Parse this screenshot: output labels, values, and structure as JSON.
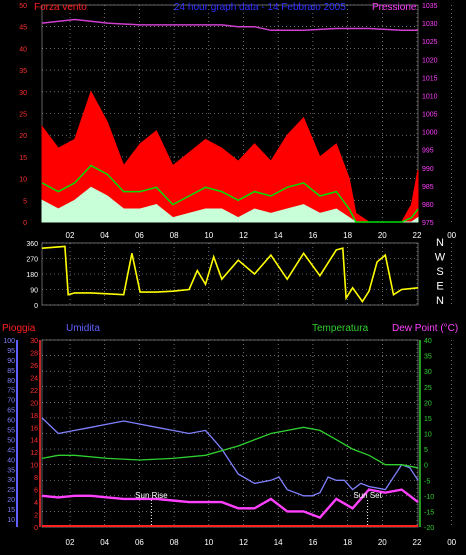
{
  "colors": {
    "wind_gust": "#ff0000",
    "wind_avg": "#00e000",
    "wind_low": "#c8ffd8",
    "pressure": "#d040d0",
    "direction": "#ffff00",
    "rain": "#ff2020",
    "humidity": "#8080ff",
    "temperature": "#30d030",
    "dewpoint": "#ff40ff",
    "grid": "#b0b0b0",
    "title": "#3030ff"
  },
  "chart_data": [
    {
      "type": "area",
      "title": "24 hour graph data - 14 Febbraio 2005",
      "left_label": "Forza vento",
      "right_label": "Pressione",
      "x_ticks": [
        "02",
        "04",
        "06",
        "08",
        "10",
        "12",
        "14",
        "16",
        "18",
        "20",
        "22",
        "00"
      ],
      "y_left_ticks": [
        "0",
        "5",
        "10",
        "15",
        "20",
        "25",
        "30",
        "35",
        "40",
        "45",
        "50"
      ],
      "y_right_ticks": [
        "975",
        "980",
        "985",
        "990",
        "995",
        "1000",
        "1005",
        "1010",
        "1015",
        "1020",
        "1025",
        "1030",
        "1035"
      ],
      "ylim_left": [
        0,
        50
      ],
      "ylim_right": [
        975,
        1035
      ],
      "series": [
        {
          "x": [
            0,
            1,
            2,
            3,
            4,
            5,
            6,
            7,
            8,
            9,
            10,
            11,
            12,
            13,
            14,
            15,
            16,
            17,
            18,
            18.8,
            19.2,
            20,
            21,
            22,
            22.6,
            23
          ],
          "values": [
            22,
            17,
            19,
            30,
            23,
            13,
            18,
            21,
            13,
            16,
            19,
            17,
            14,
            18,
            14,
            20,
            24,
            15,
            18,
            10,
            2,
            0,
            0,
            0,
            4,
            12
          ]
        },
        {
          "x": [
            0,
            1,
            2,
            3,
            4,
            5,
            6,
            7,
            8,
            9,
            10,
            11,
            12,
            13,
            14,
            15,
            16,
            17,
            18,
            18.8,
            19.2,
            20,
            21,
            22,
            22.6,
            23
          ],
          "values": [
            9,
            7,
            9,
            13,
            11,
            7,
            7,
            8,
            4,
            6,
            8,
            7,
            5,
            7,
            6,
            8,
            9,
            6,
            7,
            3,
            0,
            0,
            0,
            0,
            1,
            3
          ]
        },
        {
          "x": [
            0,
            1,
            2,
            3,
            4,
            5,
            6,
            7,
            8,
            9,
            10,
            11,
            12,
            13,
            14,
            15,
            16,
            17,
            18,
            18.8,
            19.2,
            20,
            21,
            22,
            22.6,
            23
          ],
          "values": [
            5,
            3,
            5,
            8,
            6,
            3,
            3,
            4,
            1,
            2,
            3,
            3,
            1,
            3,
            2,
            3,
            4,
            2,
            3,
            1,
            0,
            0,
            0,
            0,
            0,
            1
          ]
        },
        {
          "x": [
            0,
            2,
            3,
            4,
            6,
            8,
            10,
            11,
            12,
            13,
            14,
            16,
            18,
            20,
            22,
            23
          ],
          "values": [
            1030,
            1031,
            1030.5,
            1030,
            1029.5,
            1029.5,
            1029.5,
            1029.5,
            1029,
            1029,
            1028,
            1028,
            1028.5,
            1028.5,
            1028,
            1028
          ]
        }
      ]
    },
    {
      "type": "line",
      "right_labels": [
        "N",
        "W",
        "S",
        "E",
        "N"
      ],
      "y_ticks": [
        "0",
        "90",
        "180",
        "270",
        "360"
      ],
      "ylim": [
        0,
        360
      ],
      "series": [
        {
          "x": [
            0,
            1.4,
            1.6,
            2,
            3,
            4,
            5,
            5.5,
            6,
            7,
            8,
            9,
            9.5,
            10,
            10.5,
            11,
            12,
            13,
            14,
            15,
            16,
            17,
            18,
            18.4,
            18.6,
            19,
            19.6,
            20,
            20.5,
            21,
            21.5,
            22,
            23
          ],
          "values": [
            330,
            340,
            60,
            70,
            70,
            65,
            60,
            300,
            75,
            75,
            80,
            90,
            200,
            120,
            280,
            150,
            260,
            180,
            290,
            150,
            300,
            170,
            320,
            330,
            40,
            100,
            20,
            80,
            250,
            290,
            60,
            90,
            100
          ]
        }
      ]
    },
    {
      "type": "line",
      "title_labels": [
        "Pioggia",
        "Umidita",
        "Temperatura",
        "Dew Point (°C)"
      ],
      "annotations": [
        "Sun Rise",
        "Sun Set"
      ],
      "y_ticks_rain": [
        "0",
        "2",
        "4",
        "6",
        "8",
        "10",
        "12",
        "14",
        "16",
        "18",
        "20",
        "22",
        "24",
        "26",
        "28",
        "30"
      ],
      "y_ticks_hum": [
        "10",
        "15",
        "20",
        "25",
        "30",
        "35",
        "40",
        "45",
        "50",
        "55",
        "60",
        "65",
        "70",
        "75",
        "80",
        "85",
        "90",
        "95",
        "100"
      ],
      "y_ticks_temp": [
        "-20",
        "-15",
        "-10",
        "-5",
        "0",
        "5",
        "10",
        "15",
        "20",
        "25",
        "30",
        "35",
        "40"
      ],
      "ylim_temp": [
        -20,
        40
      ],
      "series": [
        {
          "x": [
            0,
            1,
            2,
            3,
            4,
            5,
            6,
            7,
            8,
            9,
            10,
            10.5,
            11,
            12,
            13,
            14,
            14.5,
            15,
            16,
            16.5,
            17,
            17.5,
            18,
            18.5,
            19,
            19.5,
            20,
            21,
            22,
            22.5,
            23
          ],
          "values": [
            15,
            10,
            11,
            12,
            13,
            14,
            13,
            12,
            11,
            10,
            11,
            8,
            5,
            -3,
            -6,
            -5,
            -4,
            -8,
            -10,
            -10,
            -9,
            -4,
            -5,
            -5,
            -8,
            -6,
            -7,
            -8,
            0,
            -1,
            -5
          ]
        },
        {
          "x": [
            0,
            1,
            2,
            4,
            6,
            8,
            10,
            12,
            14,
            16,
            17,
            18,
            19,
            20,
            21,
            22,
            23
          ],
          "values": [
            2,
            3,
            3,
            2,
            1.5,
            2,
            3,
            6,
            10,
            12,
            11,
            8,
            5,
            3,
            0,
            0,
            -1
          ]
        },
        {
          "x": [
            0,
            1,
            2,
            3,
            4,
            5,
            6,
            7,
            8,
            9,
            10,
            11,
            12,
            13,
            14,
            15,
            16,
            17,
            18,
            19,
            20,
            21,
            22,
            23
          ],
          "values": [
            -10,
            -10.5,
            -10,
            -10,
            -10.5,
            -11,
            -11,
            -11,
            -11.5,
            -12,
            -12,
            -12,
            -14,
            -14,
            -11,
            -15,
            -15,
            -17,
            -11,
            -14,
            -8,
            -9,
            -8,
            -12
          ]
        },
        {
          "x": [
            0,
            23
          ],
          "values": [
            0,
            0
          ]
        }
      ]
    }
  ]
}
